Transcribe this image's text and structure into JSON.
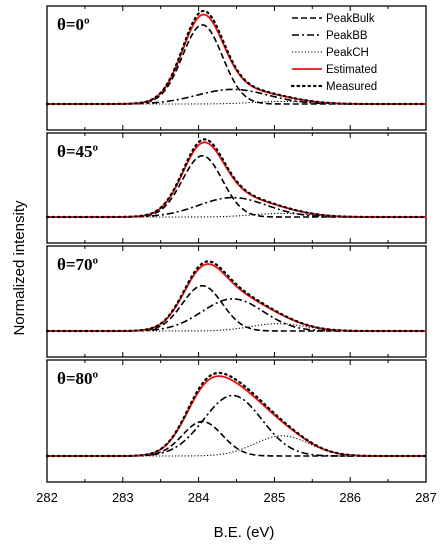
{
  "chart_data": {
    "type": "line",
    "xlabel": "B.E. (eV)",
    "ylabel": "Normalized intensity",
    "xlim": [
      282,
      287
    ],
    "xticks": [
      282,
      283,
      284,
      285,
      286,
      287
    ],
    "legend": {
      "placement": "top-right",
      "entries": [
        {
          "name": "PeakBulk",
          "style": "dashed",
          "color": "#000000"
        },
        {
          "name": "PeakBB",
          "style": "dashdot",
          "color": "#000000"
        },
        {
          "name": "PeakCH",
          "style": "dotted",
          "color": "#000000"
        },
        {
          "name": "Estimated",
          "style": "solid",
          "color": "#ee1111"
        },
        {
          "name": "Measured",
          "style": "dotted-bold",
          "color": "#000000"
        }
      ]
    },
    "panels": [
      {
        "label": "θ=0º",
        "angle": 0,
        "peaks": {
          "PeakBulk": {
            "center": 284.05,
            "height": 0.92,
            "fwhm": 0.62
          },
          "PeakBB": {
            "center": 284.45,
            "height": 0.17,
            "fwhm": 1.1
          },
          "PeakCH": {
            "center": 285.1,
            "height": 0.03,
            "fwhm": 0.9
          }
        }
      },
      {
        "label": "θ=45º",
        "angle": 45,
        "peaks": {
          "PeakBulk": {
            "center": 284.05,
            "height": 0.85,
            "fwhm": 0.62
          },
          "PeakBB": {
            "center": 284.45,
            "height": 0.27,
            "fwhm": 1.05
          },
          "PeakCH": {
            "center": 285.1,
            "height": 0.05,
            "fwhm": 0.9
          }
        }
      },
      {
        "label": "θ=70º",
        "angle": 70,
        "peaks": {
          "PeakBulk": {
            "center": 284.05,
            "height": 0.62,
            "fwhm": 0.62
          },
          "PeakBB": {
            "center": 284.45,
            "height": 0.44,
            "fwhm": 0.95
          },
          "PeakCH": {
            "center": 285.05,
            "height": 0.1,
            "fwhm": 0.85
          }
        }
      },
      {
        "label": "θ=80º",
        "angle": 80,
        "peaks": {
          "PeakBulk": {
            "center": 284.05,
            "height": 0.41,
            "fwhm": 0.62
          },
          "PeakBB": {
            "center": 284.45,
            "height": 0.72,
            "fwhm": 0.9
          },
          "PeakCH": {
            "center": 285.1,
            "height": 0.24,
            "fwhm": 0.85
          }
        }
      }
    ]
  }
}
